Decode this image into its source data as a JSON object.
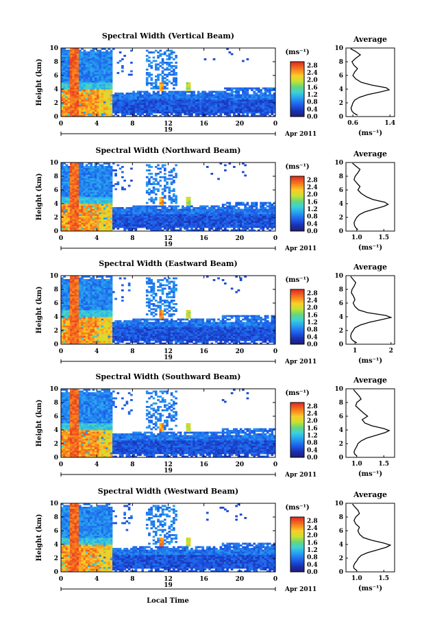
{
  "figure": {
    "xlabel": "Local Time",
    "date_label": "Apr 2011",
    "day_label": "19",
    "colorbar_label": "(ms⁻¹)",
    "profile_title": "Average",
    "profile_xlabel": "(ms⁻¹)",
    "ylabel": "Height (km)"
  },
  "chart_data": [
    {
      "type": "heatmap",
      "title": "Spectral Width (Vertical Beam)",
      "ylabel": "Height (km)",
      "x_ticks": [
        "0",
        "4",
        "8",
        "12",
        "16",
        "20",
        "0"
      ],
      "xlim": [
        0,
        24
      ],
      "ylim": [
        0,
        10
      ],
      "y_ticks": [
        "0",
        "2",
        "4",
        "6",
        "8",
        "10"
      ],
      "colorbar": {
        "range": [
          0,
          3.0
        ],
        "ticks": [
          "0.0",
          "0.4",
          "0.8",
          "1.2",
          "1.6",
          "2.0",
          "2.4",
          "2.8"
        ]
      },
      "profile": {
        "title": "Average",
        "xlim": [
          0.45,
          1.5
        ],
        "x_ticks": [
          "0.6",
          "1.4"
        ],
        "heights": [
          0.2,
          0.5,
          0.8,
          1.2,
          1.6,
          2.0,
          2.4,
          2.8,
          3.2,
          3.6,
          3.9,
          4.2,
          4.6,
          5.0,
          5.5,
          6.0,
          6.5,
          7.0,
          7.5,
          8.0,
          8.5,
          9.0,
          9.5,
          9.9
        ],
        "values": [
          0.7,
          0.62,
          0.58,
          0.56,
          0.58,
          0.6,
          0.64,
          0.74,
          0.92,
          1.2,
          1.38,
          1.32,
          1.0,
          0.78,
          0.66,
          0.6,
          0.64,
          0.7,
          0.62,
          0.58,
          0.66,
          0.76,
          0.66,
          0.55
        ]
      }
    },
    {
      "type": "heatmap",
      "title": "Spectral Width (Northward Beam)",
      "ylabel": "Height (km)",
      "x_ticks": [
        "0",
        "4",
        "8",
        "12",
        "16",
        "20",
        "0"
      ],
      "xlim": [
        0,
        24
      ],
      "ylim": [
        0,
        10
      ],
      "y_ticks": [
        "0",
        "2",
        "4",
        "6",
        "8",
        "10"
      ],
      "colorbar": {
        "range": [
          0,
          3.0
        ],
        "ticks": [
          "0.0",
          "0.4",
          "0.8",
          "1.2",
          "1.6",
          "2.0",
          "2.4",
          "2.8"
        ]
      },
      "profile": {
        "title": "Average",
        "xlim": [
          0.8,
          1.7
        ],
        "x_ticks": [
          "1.0",
          "1.5"
        ],
        "heights": [
          0.2,
          0.5,
          0.8,
          1.2,
          1.6,
          2.0,
          2.4,
          2.8,
          3.2,
          3.6,
          3.9,
          4.2,
          4.6,
          5.0,
          5.5,
          6.0,
          6.5,
          7.0,
          7.5,
          8.0,
          8.5,
          9.0,
          9.5,
          9.9
        ],
        "values": [
          1.02,
          0.98,
          0.96,
          0.95,
          0.97,
          1.0,
          1.05,
          1.15,
          1.32,
          1.5,
          1.58,
          1.52,
          1.3,
          1.18,
          1.08,
          1.02,
          1.06,
          1.0,
          0.95,
          0.97,
          1.02,
          1.06,
          0.98,
          0.92
        ]
      }
    },
    {
      "type": "heatmap",
      "title": "Spectral Width (Eastward Beam)",
      "ylabel": "Height (km)",
      "x_ticks": [
        "0",
        "4",
        "8",
        "12",
        "16",
        "20",
        "0"
      ],
      "xlim": [
        0,
        24
      ],
      "ylim": [
        0,
        10
      ],
      "y_ticks": [
        "0",
        "2",
        "4",
        "6",
        "8",
        "10"
      ],
      "colorbar": {
        "range": [
          0,
          3.0
        ],
        "ticks": [
          "0.0",
          "0.4",
          "0.8",
          "1.2",
          "1.6",
          "2.0",
          "2.4",
          "2.8"
        ]
      },
      "profile": {
        "title": "Average",
        "xlim": [
          0.75,
          2.1
        ],
        "x_ticks": [
          "1",
          "2"
        ],
        "heights": [
          0.2,
          0.5,
          0.8,
          1.2,
          1.6,
          2.0,
          2.4,
          2.8,
          3.2,
          3.6,
          3.9,
          4.2,
          4.6,
          5.0,
          5.5,
          6.0,
          6.5,
          7.0,
          7.5,
          8.0,
          8.5,
          9.0,
          9.5,
          9.9
        ],
        "values": [
          1.05,
          0.95,
          0.9,
          0.88,
          0.9,
          0.95,
          1.0,
          1.15,
          1.4,
          1.75,
          2.0,
          1.85,
          1.35,
          1.1,
          1.0,
          0.95,
          1.0,
          0.96,
          0.9,
          0.92,
          0.98,
          1.02,
          0.94,
          0.88
        ]
      }
    },
    {
      "type": "heatmap",
      "title": "Spectral Width (Southward Beam)",
      "ylabel": "Height (km)",
      "x_ticks": [
        "0",
        "4",
        "8",
        "12",
        "16",
        "20",
        "0"
      ],
      "xlim": [
        0,
        24
      ],
      "ylim": [
        0,
        10
      ],
      "y_ticks": [
        "0",
        "2",
        "4",
        "6",
        "8",
        "10"
      ],
      "colorbar": {
        "range": [
          0,
          3.0
        ],
        "ticks": [
          "0.0",
          "0.4",
          "0.8",
          "1.2",
          "1.6",
          "2.0",
          "2.4",
          "2.8"
        ]
      },
      "profile": {
        "title": "Average",
        "xlim": [
          0.8,
          1.7
        ],
        "x_ticks": [
          "1.0",
          "1.5"
        ],
        "heights": [
          0.2,
          0.5,
          0.8,
          1.2,
          1.6,
          2.0,
          2.4,
          2.8,
          3.2,
          3.6,
          3.9,
          4.2,
          4.6,
          5.0,
          5.5,
          6.0,
          6.5,
          7.0,
          7.5,
          8.0,
          8.5,
          9.0,
          9.5,
          9.9
        ],
        "values": [
          1.0,
          0.96,
          0.95,
          0.97,
          1.0,
          1.02,
          1.08,
          1.18,
          1.35,
          1.52,
          1.6,
          1.5,
          1.28,
          1.15,
          1.1,
          1.2,
          1.12,
          1.05,
          0.98,
          1.0,
          1.08,
          1.04,
          0.98,
          0.94
        ]
      }
    },
    {
      "type": "heatmap",
      "title": "Spectral Width (Westward Beam)",
      "ylabel": "Height (km)",
      "x_ticks": [
        "0",
        "4",
        "8",
        "12",
        "16",
        "20",
        "0"
      ],
      "xlim": [
        0,
        24
      ],
      "ylim": [
        0,
        10
      ],
      "y_ticks": [
        "0",
        "2",
        "4",
        "6",
        "8",
        "10"
      ],
      "colorbar": {
        "range": [
          0,
          3.0
        ],
        "ticks": [
          "0.0",
          "0.4",
          "0.8",
          "1.2",
          "1.6",
          "2.0",
          "2.4",
          "2.8"
        ]
      },
      "profile": {
        "title": "Average",
        "xlim": [
          0.8,
          1.7
        ],
        "x_ticks": [
          "1.0",
          "1.5"
        ],
        "heights": [
          0.2,
          0.5,
          0.8,
          1.2,
          1.6,
          2.0,
          2.4,
          2.8,
          3.2,
          3.6,
          3.9,
          4.2,
          4.6,
          5.0,
          5.5,
          6.0,
          6.5,
          7.0,
          7.5,
          8.0,
          8.5,
          9.0,
          9.5,
          9.9
        ],
        "values": [
          1.0,
          0.95,
          0.94,
          0.96,
          1.0,
          1.03,
          1.08,
          1.2,
          1.38,
          1.55,
          1.62,
          1.5,
          1.28,
          1.12,
          1.05,
          1.02,
          1.05,
          0.98,
          0.95,
          0.98,
          1.05,
          1.02,
          0.96,
          0.92
        ]
      }
    }
  ]
}
